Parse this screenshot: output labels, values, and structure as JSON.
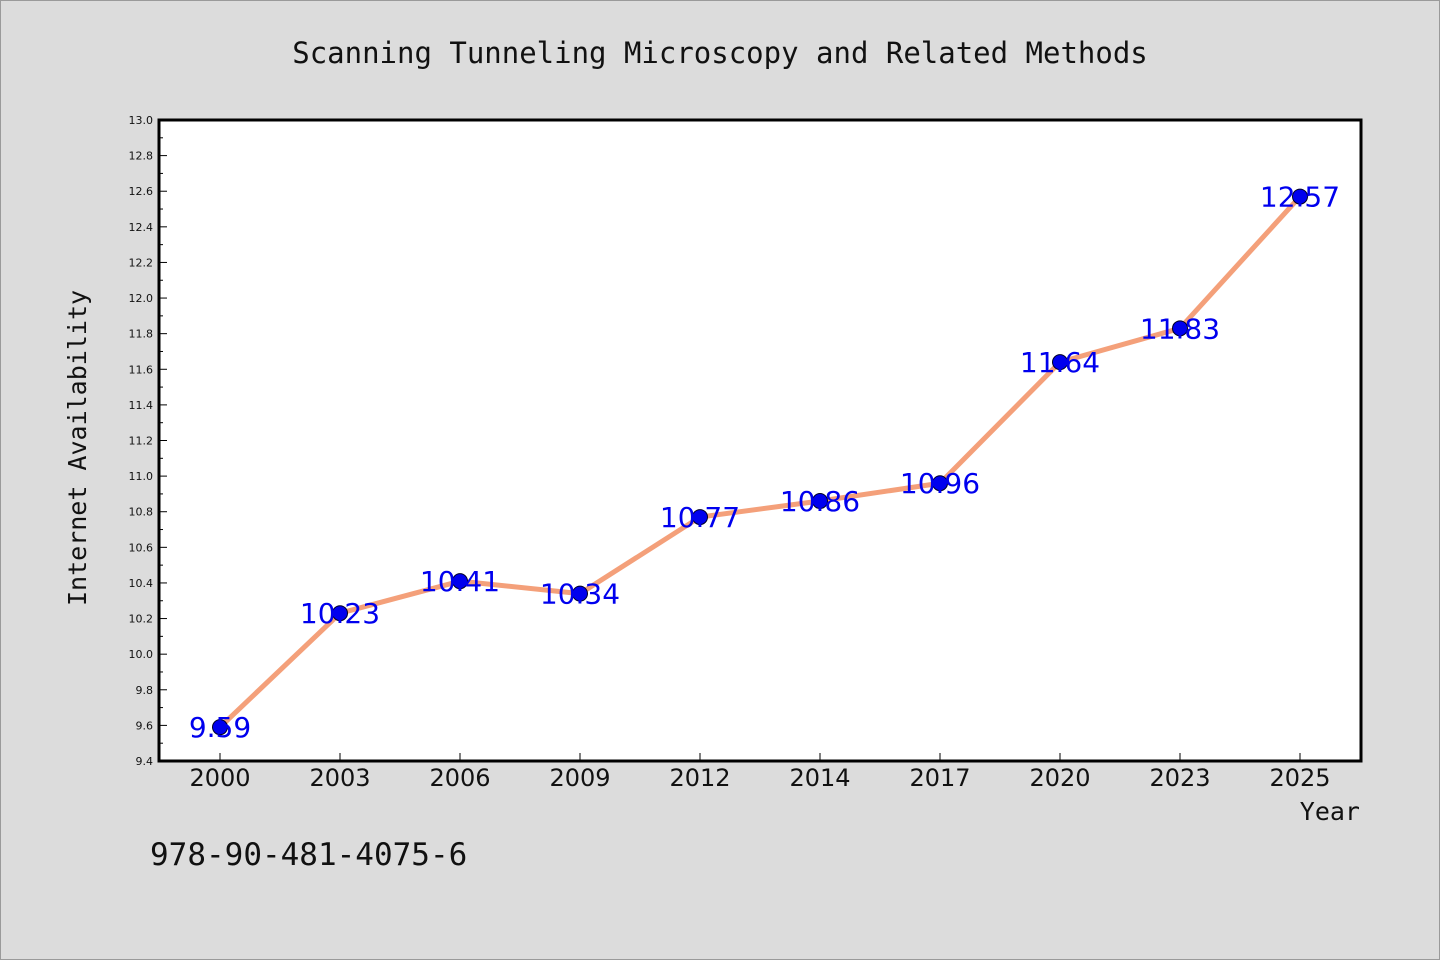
{
  "chart_data": {
    "type": "line",
    "title": "Scanning Tunneling Microscopy and Related Methods",
    "xlabel": "Year",
    "ylabel": "Internet Availability",
    "categories": [
      "2000",
      "2003",
      "2006",
      "2009",
      "2012",
      "2014",
      "2017",
      "2020",
      "2023",
      "2025"
    ],
    "series": [
      {
        "values": [
          9.59,
          10.23,
          10.41,
          10.34,
          10.77,
          10.86,
          10.96,
          11.64,
          11.83,
          12.57
        ],
        "labels": [
          "9.59",
          "10.23",
          "10.41",
          "10.34",
          "10.77",
          "10.86",
          "10.96",
          "11.64",
          "11.83",
          "12.57"
        ]
      }
    ],
    "ylim": [
      9.4,
      13.0
    ],
    "yticks": [
      "9.4",
      "9.6",
      "9.8",
      "10.0",
      "10.2",
      "10.4",
      "10.6",
      "10.8",
      "11.0",
      "11.2",
      "11.4",
      "11.6",
      "11.8",
      "12.0",
      "12.2",
      "12.4",
      "12.6",
      "12.8",
      "13.0"
    ],
    "grid": false,
    "legend": "none",
    "colors": {
      "line": "#f4a07a",
      "marker": "#0000ee",
      "data_label": "#0000ee",
      "plot_background": "#ffffff",
      "figure_background": "#dcdcdc"
    }
  },
  "footer": {
    "isbn": "978-90-481-4075-6"
  }
}
